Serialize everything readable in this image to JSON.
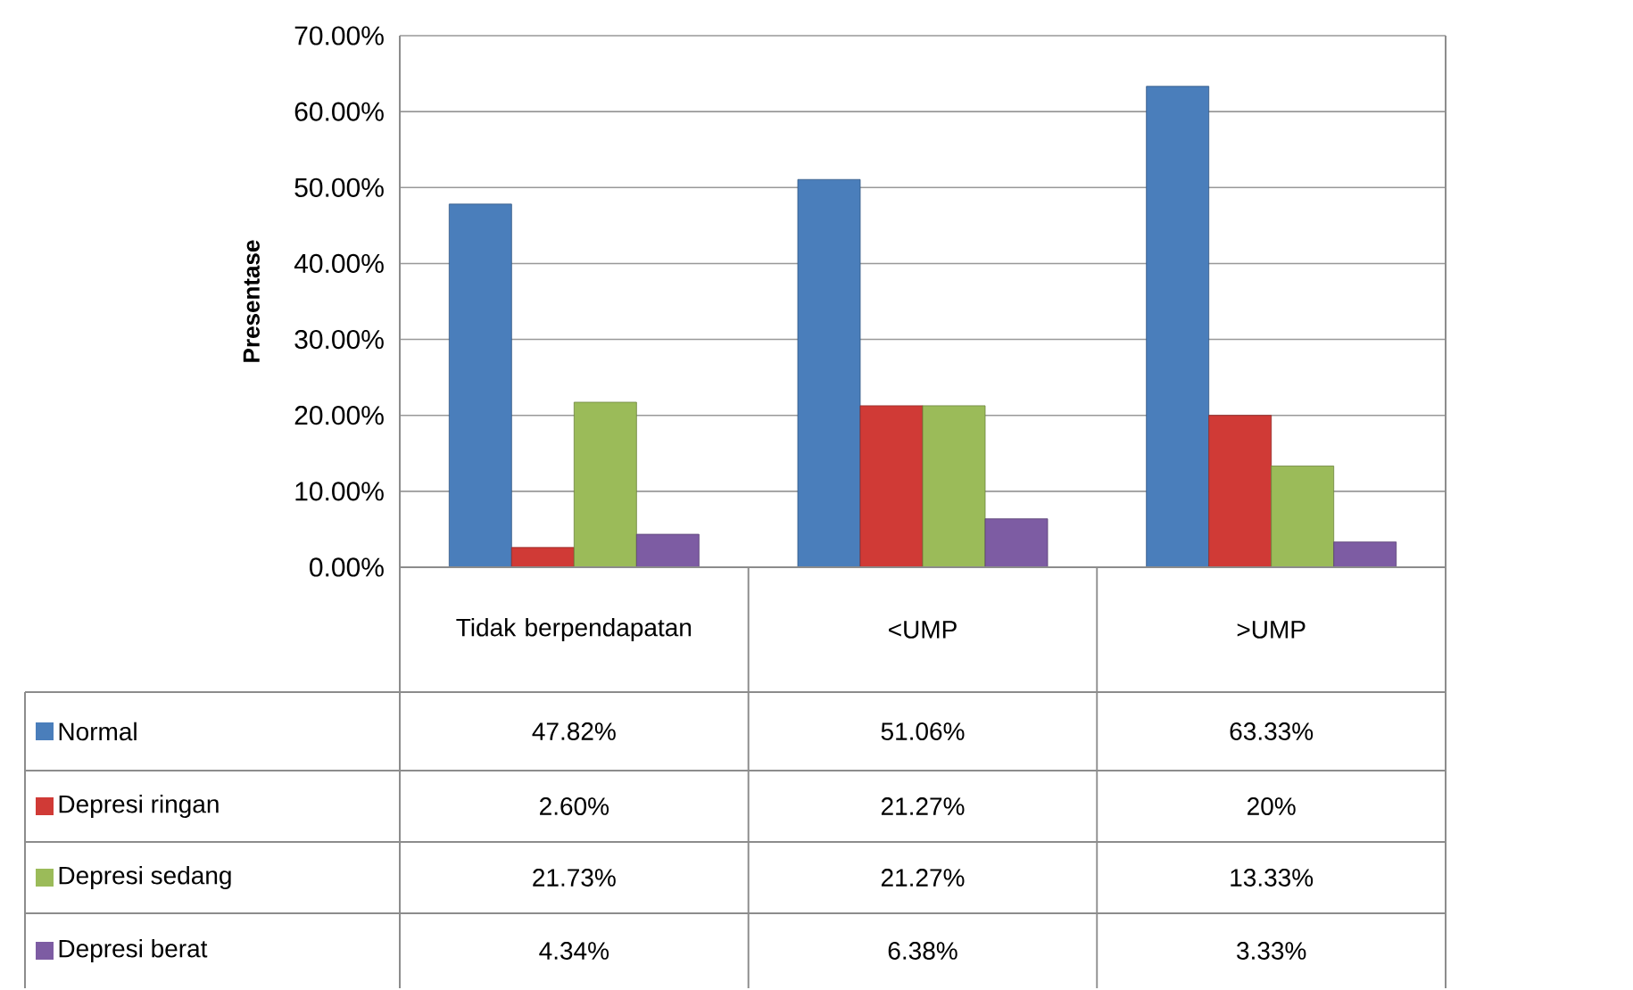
{
  "chart_data": {
    "type": "bar",
    "ylabel": "Presentase",
    "categories": [
      "Tidak berpendapatan",
      "<UMP",
      ">UMP"
    ],
    "series": [
      {
        "name": "Normal",
        "color": "#4a7ebb",
        "values": [
          47.82,
          51.06,
          63.33
        ],
        "value_labels": [
          "47.82%",
          "51.06%",
          "63.33%"
        ]
      },
      {
        "name": "Depresi ringan",
        "color": "#d03a36",
        "values": [
          2.6,
          21.27,
          20
        ],
        "value_labels": [
          "2.60%",
          "21.27%",
          "20%"
        ]
      },
      {
        "name": "Depresi sedang",
        "color": "#9bbb59",
        "values": [
          21.73,
          21.27,
          13.33
        ],
        "value_labels": [
          "21.73%",
          "21.27%",
          "13.33%"
        ]
      },
      {
        "name": "Depresi berat",
        "color": "#7d5ca3",
        "values": [
          4.34,
          6.38,
          3.33
        ],
        "value_labels": [
          "4.34%",
          "6.38%",
          "3.33%"
        ]
      }
    ],
    "ylim": [
      0,
      70
    ],
    "yticks": [
      {
        "value": 0,
        "label": "0.00%"
      },
      {
        "value": 10,
        "label": "10.00%"
      },
      {
        "value": 20,
        "label": "20.00%"
      },
      {
        "value": 30,
        "label": "30.00%"
      },
      {
        "value": 40,
        "label": "40.00%"
      },
      {
        "value": 50,
        "label": "50.00%"
      },
      {
        "value": 60,
        "label": "60.00%"
      },
      {
        "value": 70,
        "label": "70.00%"
      }
    ],
    "grid": "y",
    "legend": "bottom left"
  }
}
